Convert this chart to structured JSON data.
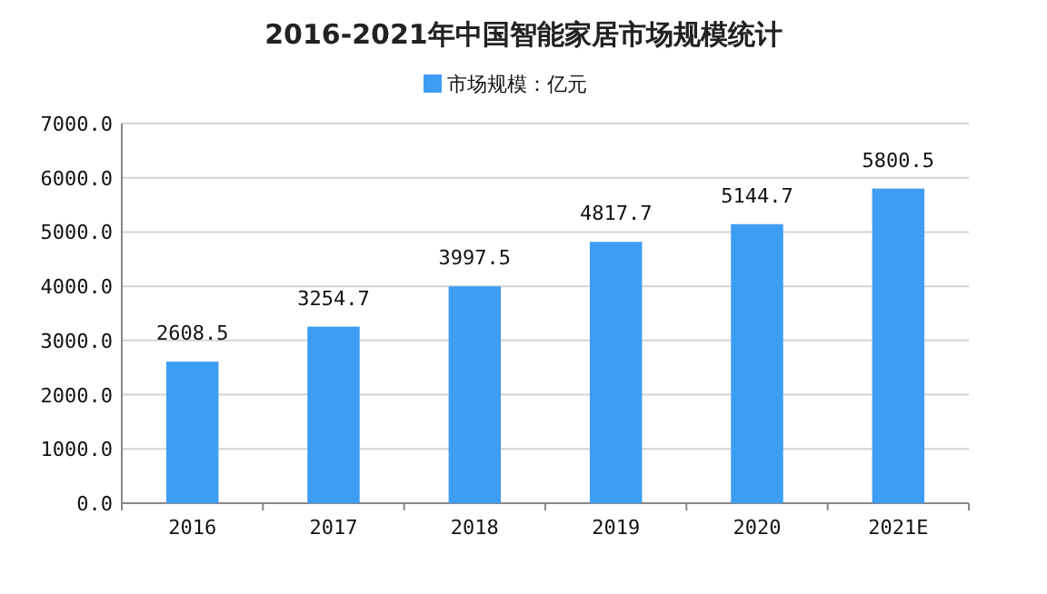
{
  "chart_data": {
    "type": "bar",
    "title": "2016-2021年中国智能家居市场规模统计",
    "categories": [
      "2016",
      "2017",
      "2018",
      "2019",
      "2020",
      "2021E"
    ],
    "series": [
      {
        "name": "市场规模：亿元",
        "color": "#3d9df3",
        "values": [
          2608.5,
          3254.7,
          3997.5,
          4817.7,
          5144.7,
          5800.5
        ]
      }
    ],
    "data_labels": true,
    "ylim": [
      0,
      7000
    ],
    "yticks": [
      {
        "value": 0,
        "label": "0.0"
      },
      {
        "value": 1000,
        "label": "1000.0"
      },
      {
        "value": 2000,
        "label": "2000.0"
      },
      {
        "value": 3000,
        "label": "3000.0"
      },
      {
        "value": 4000,
        "label": "4000.0"
      },
      {
        "value": 5000,
        "label": "5000.0"
      },
      {
        "value": 6000,
        "label": "6000.0"
      },
      {
        "value": 7000,
        "label": "7000.0"
      }
    ],
    "grid": "y",
    "legend": "top"
  }
}
